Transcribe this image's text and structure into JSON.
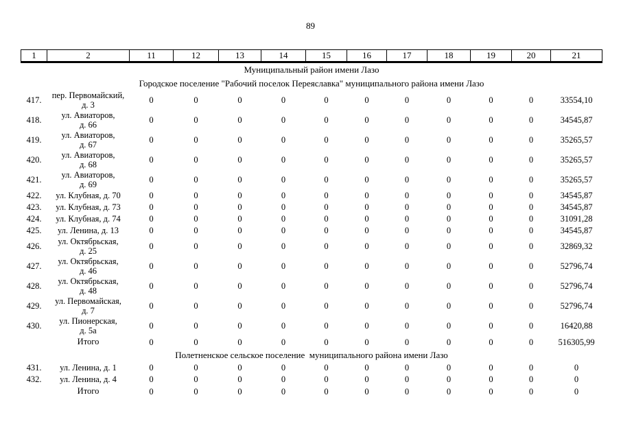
{
  "colors": {
    "text": "#000000",
    "background": "#ffffff",
    "border": "#000000"
  },
  "page_number": "89",
  "table": {
    "header_columns": [
      "1",
      "2",
      "11",
      "12",
      "13",
      "14",
      "15",
      "16",
      "17",
      "18",
      "19",
      "20",
      "21"
    ],
    "sections": [
      {
        "title": "Муниципальный район имени Лазо",
        "rows": []
      },
      {
        "title": "Городское поселение \"Рабочий поселок Переяславка\" муниципального района имени Лазо",
        "rows": [
          {
            "num": "417.",
            "two_line": true,
            "address": [
              "пер. Первомайский,",
              "д. 3"
            ],
            "values": [
              "0",
              "0",
              "0",
              "0",
              "0",
              "0",
              "0",
              "0",
              "0",
              "0"
            ],
            "total": "33554,10"
          },
          {
            "num": "418.",
            "two_line": true,
            "address": [
              "ул. Авиаторов,",
              "д. 66"
            ],
            "values": [
              "0",
              "0",
              "0",
              "0",
              "0",
              "0",
              "0",
              "0",
              "0",
              "0"
            ],
            "total": "34545,87"
          },
          {
            "num": "419.",
            "two_line": true,
            "address": [
              "ул. Авиаторов,",
              "д. 67"
            ],
            "values": [
              "0",
              "0",
              "0",
              "0",
              "0",
              "0",
              "0",
              "0",
              "0",
              "0"
            ],
            "total": "35265,57"
          },
          {
            "num": "420.",
            "two_line": true,
            "address": [
              "ул. Авиаторов,",
              "д. 68"
            ],
            "values": [
              "0",
              "0",
              "0",
              "0",
              "0",
              "0",
              "0",
              "0",
              "0",
              "0"
            ],
            "total": "35265,57"
          },
          {
            "num": "421.",
            "two_line": true,
            "address": [
              "ул. Авиаторов,",
              "д. 69"
            ],
            "values": [
              "0",
              "0",
              "0",
              "0",
              "0",
              "0",
              "0",
              "0",
              "0",
              "0"
            ],
            "total": "35265,57"
          },
          {
            "num": "422.",
            "two_line": false,
            "address": [
              "ул. Клубная, д. 70"
            ],
            "values": [
              "0",
              "0",
              "0",
              "0",
              "0",
              "0",
              "0",
              "0",
              "0",
              "0"
            ],
            "total": "34545,87"
          },
          {
            "num": "423.",
            "two_line": false,
            "address": [
              "ул. Клубная, д. 73"
            ],
            "values": [
              "0",
              "0",
              "0",
              "0",
              "0",
              "0",
              "0",
              "0",
              "0",
              "0"
            ],
            "total": "34545,87"
          },
          {
            "num": "424.",
            "two_line": false,
            "address": [
              "ул. Клубная, д. 74"
            ],
            "values": [
              "0",
              "0",
              "0",
              "0",
              "0",
              "0",
              "0",
              "0",
              "0",
              "0"
            ],
            "total": "31091,28"
          },
          {
            "num": "425.",
            "two_line": false,
            "address": [
              "ул. Ленина, д. 13"
            ],
            "values": [
              "0",
              "0",
              "0",
              "0",
              "0",
              "0",
              "0",
              "0",
              "0",
              "0"
            ],
            "total": "34545,87"
          },
          {
            "num": "426.",
            "two_line": true,
            "address": [
              "ул. Октябрьская,",
              "д. 25"
            ],
            "values": [
              "0",
              "0",
              "0",
              "0",
              "0",
              "0",
              "0",
              "0",
              "0",
              "0"
            ],
            "total": "32869,32"
          },
          {
            "num": "427.",
            "two_line": true,
            "address": [
              "ул. Октябрьская,",
              "д. 46"
            ],
            "values": [
              "0",
              "0",
              "0",
              "0",
              "0",
              "0",
              "0",
              "0",
              "0",
              "0"
            ],
            "total": "52796,74"
          },
          {
            "num": "428.",
            "two_line": true,
            "address": [
              "ул. Октябрьская,",
              "д. 48"
            ],
            "values": [
              "0",
              "0",
              "0",
              "0",
              "0",
              "0",
              "0",
              "0",
              "0",
              "0"
            ],
            "total": "52796,74"
          },
          {
            "num": "429.",
            "two_line": true,
            "address": [
              "ул. Первомайская,",
              "д. 7"
            ],
            "values": [
              "0",
              "0",
              "0",
              "0",
              "0",
              "0",
              "0",
              "0",
              "0",
              "0"
            ],
            "total": "52796,74"
          },
          {
            "num": "430.",
            "two_line": true,
            "address": [
              "ул. Пионерская,",
              "д. 5а"
            ],
            "values": [
              "0",
              "0",
              "0",
              "0",
              "0",
              "0",
              "0",
              "0",
              "0",
              "0"
            ],
            "total": "16420,88"
          },
          {
            "num": "",
            "is_total": true,
            "address": [
              "Итого"
            ],
            "values": [
              "0",
              "0",
              "0",
              "0",
              "0",
              "0",
              "0",
              "0",
              "0",
              "0"
            ],
            "total": "516305,99"
          }
        ]
      },
      {
        "title": "Полетненское сельское поселение  муниципального района имени Лазо",
        "rows": [
          {
            "num": "431.",
            "two_line": false,
            "address": [
              "ул. Ленина, д. 1"
            ],
            "values": [
              "0",
              "0",
              "0",
              "0",
              "0",
              "0",
              "0",
              "0",
              "0",
              "0"
            ],
            "total": "0"
          },
          {
            "num": "432.",
            "two_line": false,
            "address": [
              "ул. Ленина, д. 4"
            ],
            "values": [
              "0",
              "0",
              "0",
              "0",
              "0",
              "0",
              "0",
              "0",
              "0",
              "0"
            ],
            "total": "0"
          },
          {
            "num": "",
            "is_total": true,
            "address": [
              "Итого"
            ],
            "values": [
              "0",
              "0",
              "0",
              "0",
              "0",
              "0",
              "0",
              "0",
              "0",
              "0"
            ],
            "total": "0"
          }
        ]
      }
    ]
  }
}
